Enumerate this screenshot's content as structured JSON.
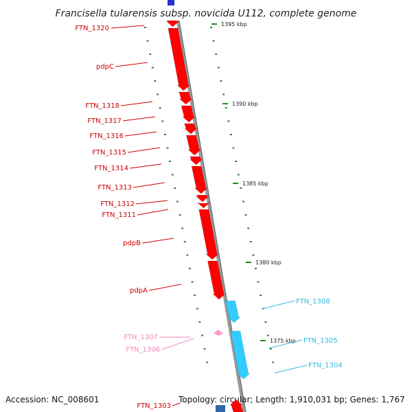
{
  "title": "Francisella tularensis subsp. novicida U112, complete genome",
  "footer": {
    "accession": "Accession: NC_008601",
    "summary": "Topology: circular; Length: 1,910,031 bp; Genes: 1,767"
  },
  "colors": {
    "forward_gene": "#ff0000",
    "reverse_gene": "#33ccff",
    "pink_gene": "#ff99cc",
    "backbone": "#999999",
    "scale_tick": "#228822",
    "red_label": "#cc0000",
    "blue_label": "#33bbdd",
    "pink_label": "#ee88bb"
  },
  "scale_labels": [
    "1395 kbp",
    "1390 kbp",
    "1385 kbp",
    "1380 kbp",
    "1375 kbp"
  ],
  "genes": [
    {
      "name": "FTN_1320",
      "strand": "forward"
    },
    {
      "name": "pdpC",
      "strand": "forward"
    },
    {
      "name": "FTN_1318",
      "strand": "forward"
    },
    {
      "name": "FTN_1317",
      "strand": "forward"
    },
    {
      "name": "FTN_1316",
      "strand": "forward"
    },
    {
      "name": "FTN_1315",
      "strand": "forward"
    },
    {
      "name": "FTN_1314",
      "strand": "forward"
    },
    {
      "name": "FTN_1313",
      "strand": "forward"
    },
    {
      "name": "FTN_1312",
      "strand": "forward"
    },
    {
      "name": "FTN_1311",
      "strand": "forward"
    },
    {
      "name": "pdpB",
      "strand": "forward"
    },
    {
      "name": "pdpA",
      "strand": "forward"
    },
    {
      "name": "FTN_1307",
      "strand": "pink"
    },
    {
      "name": "FTN_1306",
      "strand": "pink"
    },
    {
      "name": "FTN_1308",
      "strand": "reverse"
    },
    {
      "name": "FTN_1305",
      "strand": "reverse"
    },
    {
      "name": "FTN_1304",
      "strand": "reverse"
    },
    {
      "name": "FTN_1303",
      "strand": "forward"
    }
  ]
}
